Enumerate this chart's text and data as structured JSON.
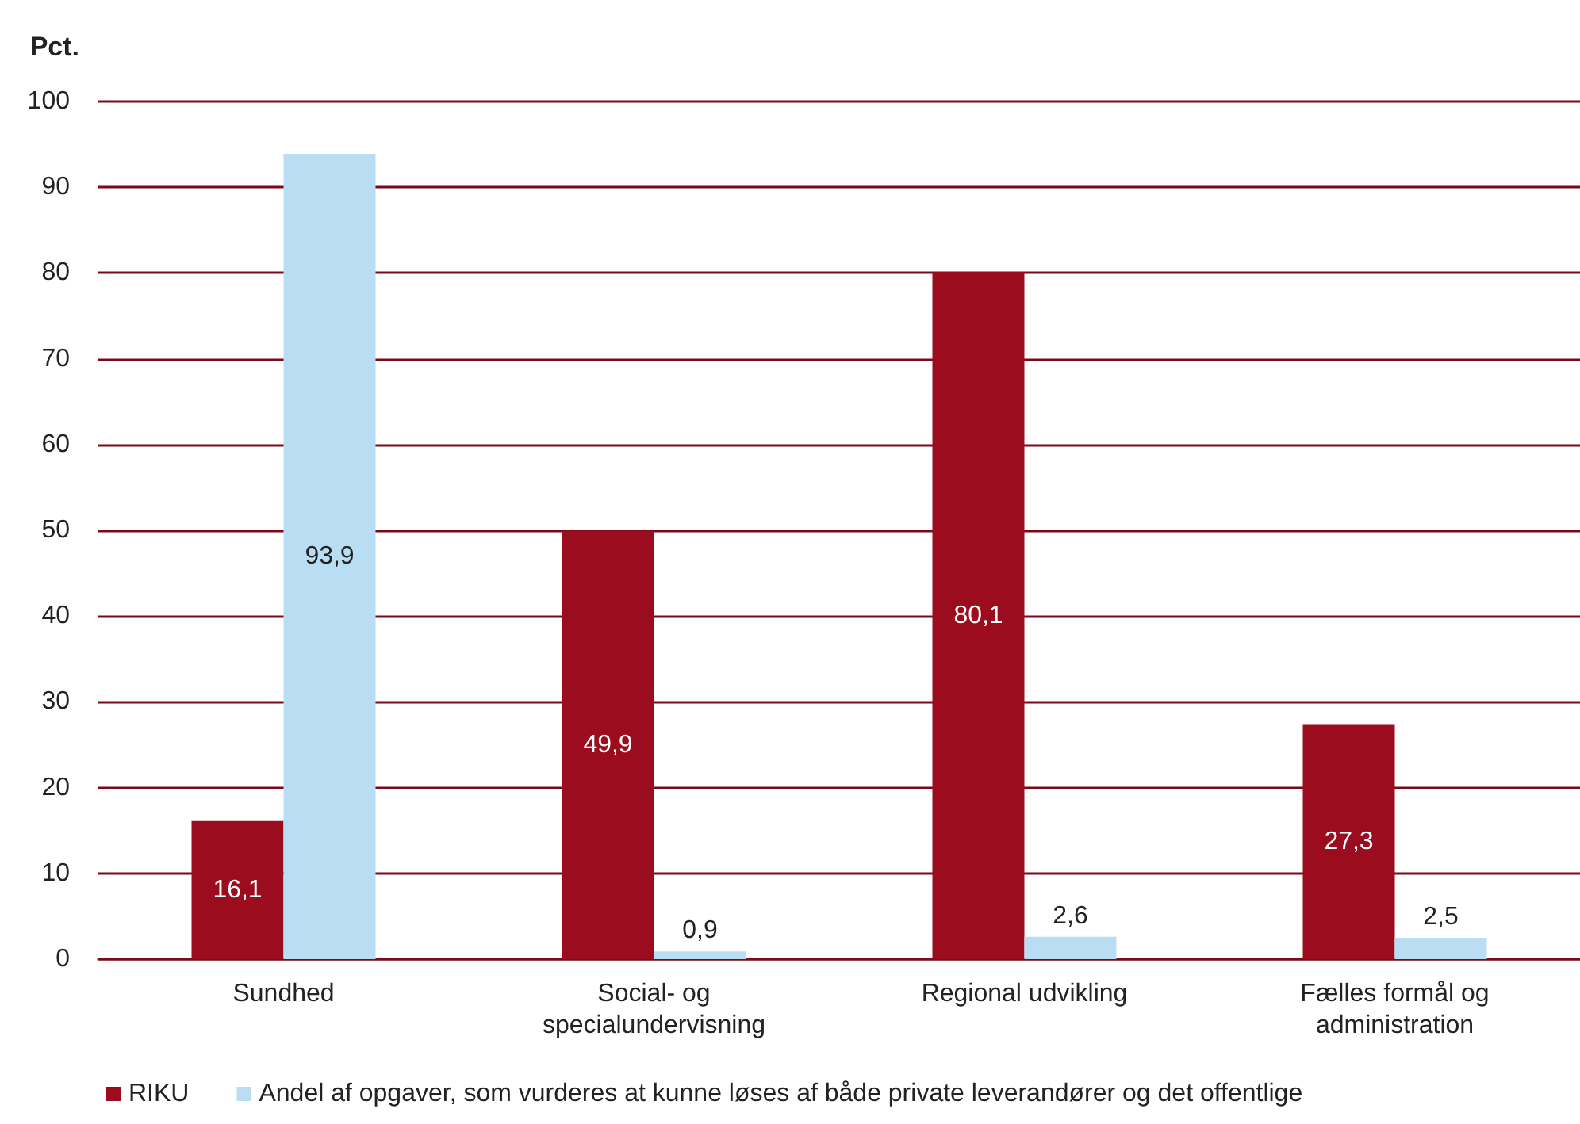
{
  "chart_data": {
    "type": "bar",
    "ylabel": "Pct.",
    "categories": [
      "Sundhed",
      "Social- og\nspecialundervisning",
      "Regional udvikling",
      "Fælles formål og\nadministration"
    ],
    "series": [
      {
        "name": "RIKU",
        "color": "#9c0c1f",
        "values": [
          16.1,
          49.9,
          80.1,
          27.3
        ],
        "value_labels": [
          "16,1",
          "49,9",
          "80,1",
          "27,3"
        ]
      },
      {
        "name": "Andel af opgaver, som vurderes at kunne løses af både private leverandører og det offentlige",
        "color": "#b9def3",
        "values": [
          93.9,
          0.9,
          2.6,
          2.5
        ],
        "value_labels": [
          "93,9",
          "0,9",
          "2,6",
          "2,5"
        ]
      }
    ],
    "ylim": [
      0,
      100
    ],
    "yticks": [
      0,
      10,
      20,
      30,
      40,
      50,
      60,
      70,
      80,
      90,
      100
    ],
    "grid": "y",
    "legend": "bottom left"
  }
}
